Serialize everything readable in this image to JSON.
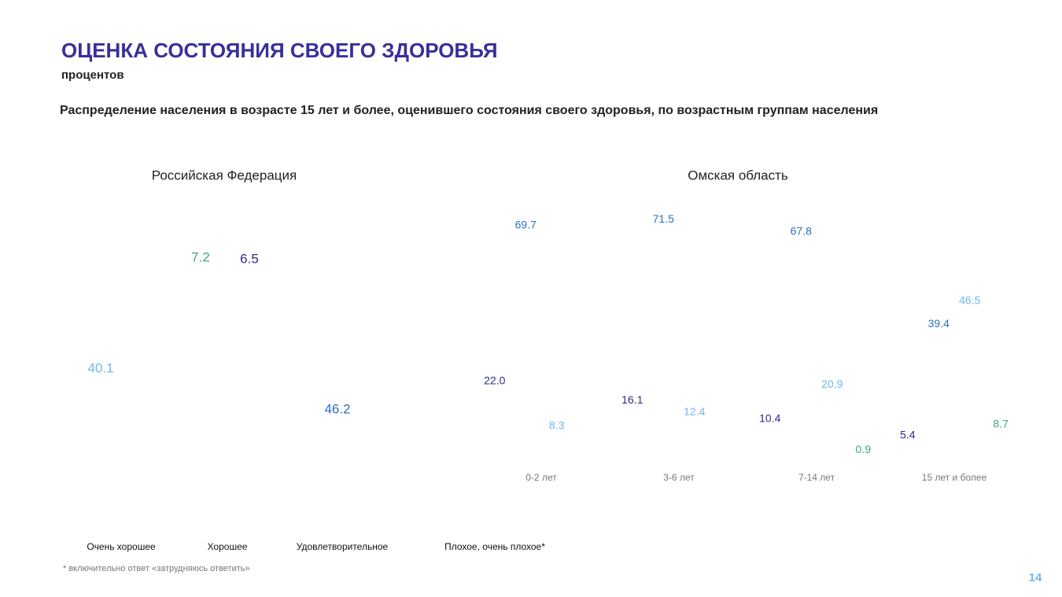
{
  "header": {
    "title": "ОЦЕНКА СОСТОЯНИЯ СВОЕГО ЗДОРОВЬЯ",
    "subtitle": "процентов",
    "description": "Распределение населения в возрасте 15 лет и более, оценившего состояния своего здоровья, по возрастным группам населения"
  },
  "chart_data": [
    {
      "type": "pie",
      "title": "Российская Федерация",
      "values": [
        6.5,
        46.2,
        40.1,
        7.2
      ],
      "colors": [
        "#2e2a8a",
        "#2f6fbf",
        "#6fb6f0",
        "#3aa88a"
      ]
    },
    {
      "type": "bar",
      "title": "Омская область",
      "categories": [
        "0-2 лет",
        "3-6 лет",
        "7-14 лет",
        "15 лет и более"
      ],
      "series": [
        {
          "name": "Очень хорошее",
          "color": "#2e2a8a",
          "values": [
            22.0,
            16.1,
            10.4,
            5.4
          ],
          "value_labels": [
            "22.0",
            "16.1",
            "10.4",
            "5.4"
          ]
        },
        {
          "name": "Хорошее",
          "color": "#2f6fbf",
          "values": [
            69.7,
            71.5,
            67.8,
            39.4
          ]
        },
        {
          "name": "Удовлетворительное",
          "color": "#6fb6f0",
          "values": [
            8.3,
            12.4,
            20.9,
            46.5
          ]
        },
        {
          "name": "Плохое, очень плохое*",
          "color": "#3aa88a",
          "values": [
            null,
            null,
            0.9,
            8.7
          ]
        }
      ]
    }
  ],
  "footnote": "* включительно ответ «затрудняюсь ответить»",
  "page_number": "14"
}
